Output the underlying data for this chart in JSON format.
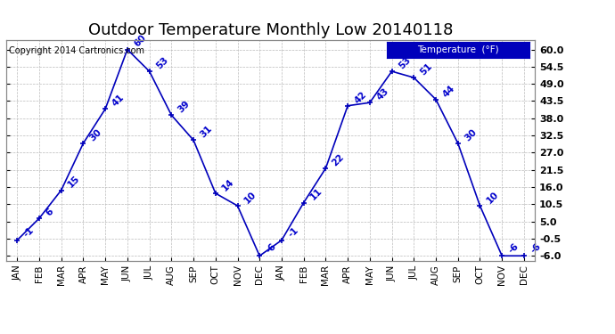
{
  "title": "Outdoor Temperature Monthly Low 20140118",
  "copyright": "Copyright 2014 Cartronics.com",
  "legend_label": "Temperature  (°F)",
  "months": [
    "JAN",
    "FEB",
    "MAR",
    "APR",
    "MAY",
    "JUN",
    "JUL",
    "AUG",
    "SEP",
    "OCT",
    "NOV",
    "DEC",
    "JAN",
    "FEB",
    "MAR",
    "APR",
    "MAY",
    "JUN",
    "JUL",
    "AUG",
    "SEP",
    "OCT",
    "NOV",
    "DEC"
  ],
  "values": [
    -1,
    6,
    15,
    30,
    41,
    60,
    53,
    39,
    31,
    14,
    10,
    -6,
    -1,
    11,
    22,
    42,
    43,
    53,
    51,
    44,
    30,
    10,
    -6,
    -6
  ],
  "ylim": [
    -7.5,
    63.0
  ],
  "yticks": [
    -6.0,
    -0.5,
    5.0,
    10.5,
    16.0,
    21.5,
    27.0,
    32.5,
    38.0,
    43.5,
    49.0,
    54.5,
    60.0
  ],
  "ytick_labels": [
    "-6.0",
    "-0.5",
    "5.0",
    "10.5",
    "16.0",
    "21.5",
    "27.0",
    "32.5",
    "38.0",
    "43.5",
    "49.0",
    "54.5",
    "60.0"
  ],
  "line_color": "#0000bb",
  "marker_color": "#0000bb",
  "label_color": "#0000cc",
  "background_color": "#ffffff",
  "grid_color": "#bbbbbb",
  "title_fontsize": 13,
  "annotation_fontsize": 7.5,
  "legend_bg": "#0000bb",
  "legend_fg": "#ffffff"
}
